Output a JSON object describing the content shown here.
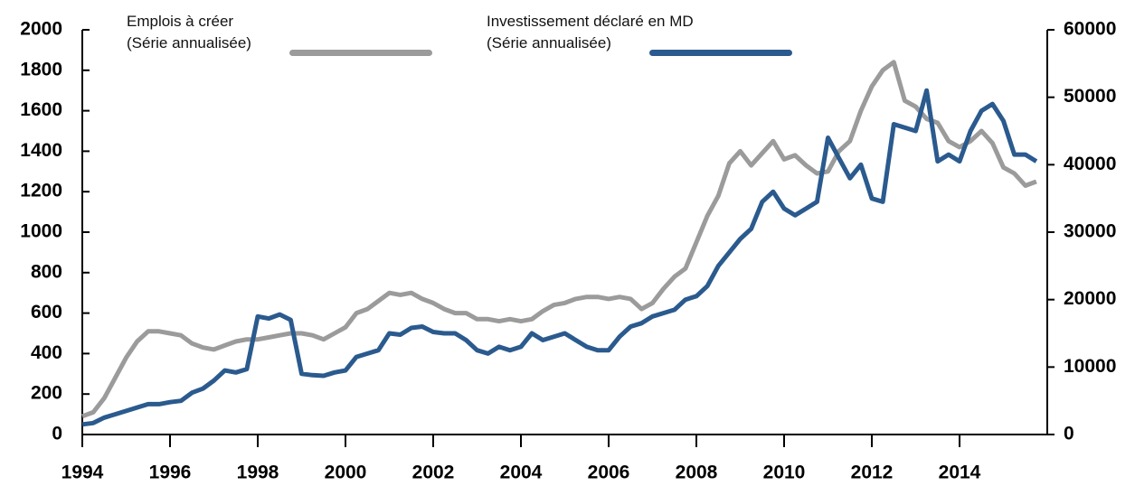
{
  "chart_data": {
    "type": "line",
    "x": [
      1994.0,
      1994.25,
      1994.5,
      1994.75,
      1995.0,
      1995.25,
      1995.5,
      1995.75,
      1996.0,
      1996.25,
      1996.5,
      1996.75,
      1997.0,
      1997.25,
      1997.5,
      1997.75,
      1998.0,
      1998.25,
      1998.5,
      1998.75,
      1999.0,
      1999.25,
      1999.5,
      1999.75,
      2000.0,
      2000.25,
      2000.5,
      2000.75,
      2001.0,
      2001.25,
      2001.5,
      2001.75,
      2002.0,
      2002.25,
      2002.5,
      2002.75,
      2003.0,
      2003.25,
      2003.5,
      2003.75,
      2004.0,
      2004.25,
      2004.5,
      2004.75,
      2005.0,
      2005.25,
      2005.5,
      2005.75,
      2006.0,
      2006.25,
      2006.5,
      2006.75,
      2007.0,
      2007.25,
      2007.5,
      2007.75,
      2008.0,
      2008.25,
      2008.5,
      2008.75,
      2009.0,
      2009.25,
      2009.5,
      2009.75,
      2010.0,
      2010.25,
      2010.5,
      2010.75,
      2011.0,
      2011.25,
      2011.5,
      2011.75,
      2012.0,
      2012.25,
      2012.5,
      2012.75,
      2013.0,
      2013.25,
      2013.5,
      2013.75,
      2014.0,
      2014.25,
      2014.5,
      2014.75,
      2015.0,
      2015.25,
      2015.5,
      2015.75
    ],
    "series": [
      {
        "name": "Emplois à créer\n(Série annualisée)",
        "color": "#9b9b9b",
        "axis": "y",
        "values": [
          90,
          110,
          180,
          280,
          380,
          460,
          510,
          510,
          500,
          490,
          450,
          430,
          420,
          440,
          460,
          470,
          470,
          480,
          490,
          500,
          500,
          490,
          470,
          500,
          530,
          600,
          620,
          660,
          700,
          690,
          700,
          670,
          650,
          620,
          600,
          600,
          570,
          570,
          560,
          570,
          560,
          570,
          610,
          640,
          650,
          670,
          680,
          680,
          670,
          680,
          670,
          620,
          650,
          720,
          780,
          820,
          950,
          1080,
          1180,
          1340,
          1400,
          1330,
          1390,
          1450,
          1360,
          1380,
          1330,
          1290,
          1300,
          1400,
          1450,
          1600,
          1720,
          1800,
          1840,
          1650,
          1620,
          1560,
          1540,
          1450,
          1420,
          1450,
          1500,
          1440,
          1320,
          1290,
          1230,
          1250
        ]
      },
      {
        "name": "Investissement déclaré en MD\n(Série annualisée)",
        "color": "#2a5a8e",
        "axis": "y2",
        "values": [
          1500,
          1700,
          2500,
          3000,
          3500,
          4000,
          4500,
          4500,
          4800,
          5000,
          6200,
          6800,
          8000,
          9500,
          9200,
          9700,
          17500,
          17200,
          17800,
          17000,
          9000,
          8800,
          8700,
          9200,
          9500,
          11500,
          12000,
          12500,
          15000,
          14800,
          15800,
          16000,
          15200,
          15000,
          15000,
          14000,
          12500,
          12000,
          13000,
          12500,
          13000,
          15000,
          14000,
          14500,
          15000,
          14000,
          13000,
          12500,
          12500,
          14500,
          16000,
          16500,
          17500,
          18000,
          18500,
          20000,
          20500,
          22000,
          25000,
          27000,
          29000,
          30500,
          34500,
          36000,
          33500,
          32500,
          33500,
          34500,
          44000,
          41000,
          38000,
          40000,
          35000,
          34500,
          46000,
          45500,
          45000,
          51000,
          40500,
          41500,
          40500,
          45000,
          48000,
          49000,
          46500,
          41500,
          41500,
          40500
        ]
      }
    ],
    "xlim": [
      1994,
      2016
    ],
    "xticks": [
      1994,
      1996,
      1998,
      2000,
      2002,
      2004,
      2006,
      2008,
      2010,
      2012,
      2014
    ],
    "ylim": [
      0,
      2000
    ],
    "yticks": [
      0,
      200,
      400,
      600,
      800,
      1000,
      1200,
      1400,
      1600,
      1800,
      2000
    ],
    "y2lim": [
      0,
      60000
    ],
    "y2ticks": [
      0,
      10000,
      20000,
      30000,
      40000,
      50000,
      60000
    ]
  }
}
